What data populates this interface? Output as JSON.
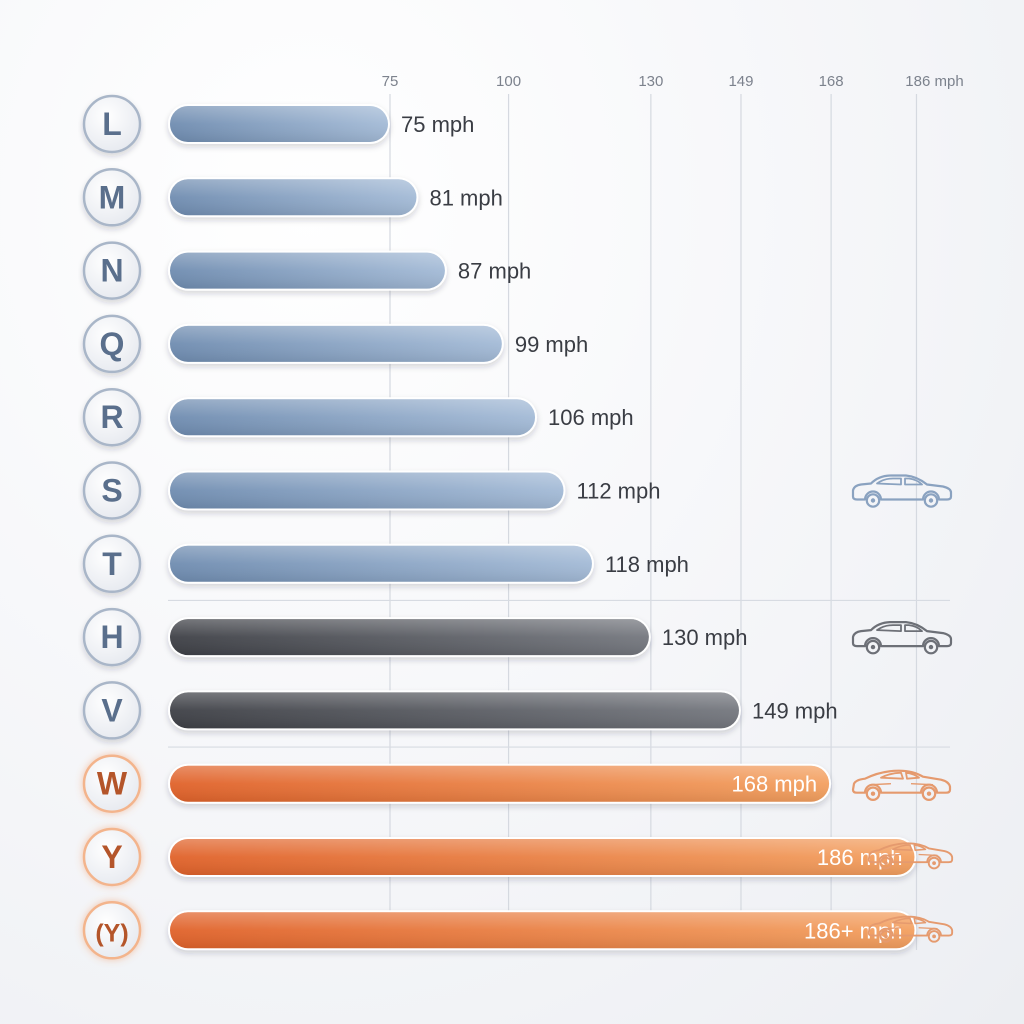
{
  "chart_data": {
    "type": "bar",
    "orientation": "horizontal",
    "categories": [
      "L",
      "M",
      "N",
      "Q",
      "R",
      "S",
      "T",
      "H",
      "V",
      "W",
      "Y",
      "(Y)"
    ],
    "values": [
      75,
      81,
      87,
      99,
      106,
      112,
      118,
      130,
      149,
      168,
      186,
      186
    ],
    "value_labels": [
      "75 mph",
      "81 mph",
      "87 mph",
      "99 mph",
      "106 mph",
      "112 mph",
      "118 mph",
      "130 mph",
      "149 mph",
      "168 mph",
      "186 mph",
      "186+ mph"
    ],
    "groups": [
      "standard",
      "standard",
      "standard",
      "standard",
      "standard",
      "standard",
      "standard",
      "performance",
      "performance",
      "high",
      "high",
      "high"
    ],
    "x_ticks": [
      75,
      100,
      130,
      149,
      168,
      186
    ],
    "x_tick_labels": [
      "75",
      "100",
      "130",
      "149",
      "168",
      "186 mph"
    ],
    "xlim": [
      0,
      186
    ],
    "grid": true,
    "group_icons": {
      "S": "sedan-icon",
      "H": "sedan-icon",
      "W": "sports-car-icon",
      "Y": "sports-car-icon",
      "(Y)": "sports-car-icon"
    },
    "colors": {
      "standard": "#7f9bbd",
      "performance": "#55585e",
      "high": "#e8763a",
      "standard_icon": "#8aa2c0",
      "performance_icon": "#6d7077",
      "high_icon": "#e59a6e",
      "text": "#3a3d44",
      "badge_text_standard": "#5a6f8c",
      "badge_text_high": "#b4552a"
    }
  }
}
